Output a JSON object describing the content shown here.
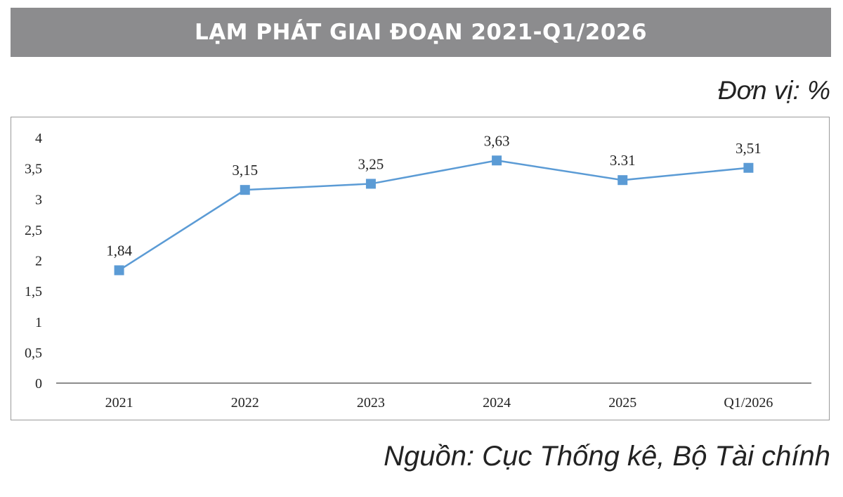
{
  "header": {
    "title": "LẠM PHÁT GIAI ĐOẠN 2021-Q1/2026"
  },
  "unit_label": "Đơn vị: %",
  "source_label": "Nguồn: Cục Thống kê, Bộ Tài chính",
  "colors": {
    "title_bg": "#8c8c8e",
    "series": "#5b9bd5",
    "axis": "#666666"
  },
  "chart_data": {
    "type": "line",
    "title": "",
    "xlabel": "",
    "ylabel": "",
    "categories": [
      "2021",
      "2022",
      "2023",
      "2024",
      "2025",
      "Q1/2026"
    ],
    "values": [
      1.84,
      3.15,
      3.25,
      3.63,
      3.31,
      3.51
    ],
    "data_labels": [
      "1,84",
      "3,15",
      "3,25",
      "3,63",
      "3.31",
      "3,51"
    ],
    "ylim": [
      0,
      4
    ],
    "yticks": [
      0,
      0.5,
      1,
      1.5,
      2,
      2.5,
      3,
      3.5,
      4
    ],
    "ytick_labels": [
      "0",
      "0,5",
      "1",
      "1,5",
      "2",
      "2,5",
      "3",
      "3,5",
      "4"
    ],
    "grid": false,
    "legend": "none",
    "marker": "square"
  }
}
